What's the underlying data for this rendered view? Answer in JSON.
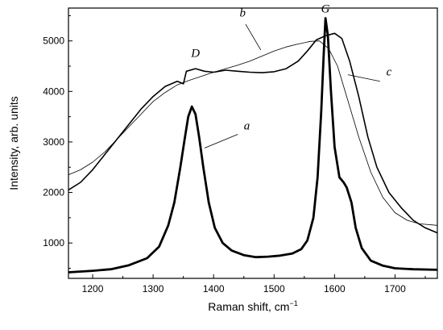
{
  "chart_data": {
    "type": "line",
    "title": "",
    "xlabel": "Raman shift, cm",
    "xlabel_sup": "−1",
    "ylabel": "Intensity, arb. units",
    "xlim": [
      1160,
      1770
    ],
    "ylim": [
      300,
      5650
    ],
    "x_ticks": [
      1200,
      1300,
      1400,
      1500,
      1600,
      1700
    ],
    "y_ticks": [
      1000,
      2000,
      3000,
      4000,
      5000
    ],
    "grid": false,
    "legend": "none",
    "series": [
      {
        "label": "a",
        "style": "thick",
        "points": [
          [
            1160,
            420
          ],
          [
            1200,
            450
          ],
          [
            1230,
            480
          ],
          [
            1260,
            560
          ],
          [
            1290,
            700
          ],
          [
            1310,
            930
          ],
          [
            1325,
            1350
          ],
          [
            1335,
            1800
          ],
          [
            1345,
            2500
          ],
          [
            1352,
            3050
          ],
          [
            1358,
            3500
          ],
          [
            1364,
            3700
          ],
          [
            1370,
            3550
          ],
          [
            1376,
            3100
          ],
          [
            1383,
            2500
          ],
          [
            1392,
            1800
          ],
          [
            1402,
            1300
          ],
          [
            1415,
            1000
          ],
          [
            1430,
            850
          ],
          [
            1450,
            760
          ],
          [
            1470,
            720
          ],
          [
            1490,
            730
          ],
          [
            1510,
            750
          ],
          [
            1530,
            790
          ],
          [
            1545,
            880
          ],
          [
            1555,
            1050
          ],
          [
            1565,
            1500
          ],
          [
            1572,
            2300
          ],
          [
            1578,
            3600
          ],
          [
            1582,
            4700
          ],
          [
            1585,
            5450
          ],
          [
            1589,
            5100
          ],
          [
            1594,
            4000
          ],
          [
            1600,
            2900
          ],
          [
            1608,
            2300
          ],
          [
            1615,
            2200
          ],
          [
            1620,
            2100
          ],
          [
            1628,
            1800
          ],
          [
            1635,
            1300
          ],
          [
            1645,
            900
          ],
          [
            1660,
            650
          ],
          [
            1680,
            550
          ],
          [
            1700,
            500
          ],
          [
            1730,
            480
          ],
          [
            1770,
            470
          ]
        ]
      },
      {
        "label": "b",
        "style": "thin",
        "points": [
          [
            1160,
            2350
          ],
          [
            1180,
            2450
          ],
          [
            1200,
            2600
          ],
          [
            1220,
            2800
          ],
          [
            1240,
            3050
          ],
          [
            1260,
            3300
          ],
          [
            1280,
            3550
          ],
          [
            1300,
            3800
          ],
          [
            1320,
            3980
          ],
          [
            1340,
            4130
          ],
          [
            1360,
            4220
          ],
          [
            1380,
            4300
          ],
          [
            1400,
            4380
          ],
          [
            1420,
            4450
          ],
          [
            1440,
            4520
          ],
          [
            1460,
            4600
          ],
          [
            1480,
            4700
          ],
          [
            1500,
            4800
          ],
          [
            1520,
            4880
          ],
          [
            1540,
            4940
          ],
          [
            1560,
            4990
          ],
          [
            1575,
            5000
          ],
          [
            1590,
            4850
          ],
          [
            1605,
            4500
          ],
          [
            1620,
            3900
          ],
          [
            1640,
            3100
          ],
          [
            1660,
            2400
          ],
          [
            1680,
            1900
          ],
          [
            1700,
            1600
          ],
          [
            1720,
            1450
          ],
          [
            1740,
            1380
          ],
          [
            1770,
            1350
          ]
        ]
      },
      {
        "label": "c",
        "style": "medium",
        "points": [
          [
            1160,
            2050
          ],
          [
            1180,
            2200
          ],
          [
            1200,
            2450
          ],
          [
            1220,
            2750
          ],
          [
            1240,
            3050
          ],
          [
            1260,
            3350
          ],
          [
            1280,
            3650
          ],
          [
            1300,
            3900
          ],
          [
            1320,
            4100
          ],
          [
            1340,
            4200
          ],
          [
            1350,
            4150
          ],
          [
            1355,
            4400
          ],
          [
            1370,
            4450
          ],
          [
            1385,
            4400
          ],
          [
            1400,
            4380
          ],
          [
            1420,
            4420
          ],
          [
            1440,
            4400
          ],
          [
            1460,
            4380
          ],
          [
            1480,
            4370
          ],
          [
            1500,
            4390
          ],
          [
            1520,
            4450
          ],
          [
            1540,
            4600
          ],
          [
            1555,
            4800
          ],
          [
            1570,
            5020
          ],
          [
            1585,
            5100
          ],
          [
            1600,
            5150
          ],
          [
            1612,
            5050
          ],
          [
            1625,
            4600
          ],
          [
            1640,
            3900
          ],
          [
            1655,
            3100
          ],
          [
            1670,
            2500
          ],
          [
            1690,
            2000
          ],
          [
            1710,
            1700
          ],
          [
            1730,
            1450
          ],
          [
            1750,
            1300
          ],
          [
            1770,
            1200
          ]
        ]
      }
    ],
    "annotations": [
      {
        "text": "G",
        "x": 1585,
        "y": 5560
      },
      {
        "text": "D",
        "x": 1370,
        "y": 4680
      },
      {
        "text": "b",
        "x": 1448,
        "y": 5480
      },
      {
        "text": "c",
        "x": 1690,
        "y": 4320
      },
      {
        "text": "a",
        "x": 1455,
        "y": 3250
      }
    ],
    "leaders": [
      {
        "from": [
          1453,
          5330
        ],
        "to": [
          1478,
          4820
        ]
      },
      {
        "from": [
          1675,
          4200
        ],
        "to": [
          1622,
          4330
        ]
      },
      {
        "from": [
          1440,
          3150
        ],
        "to": [
          1385,
          2880
        ]
      }
    ]
  }
}
